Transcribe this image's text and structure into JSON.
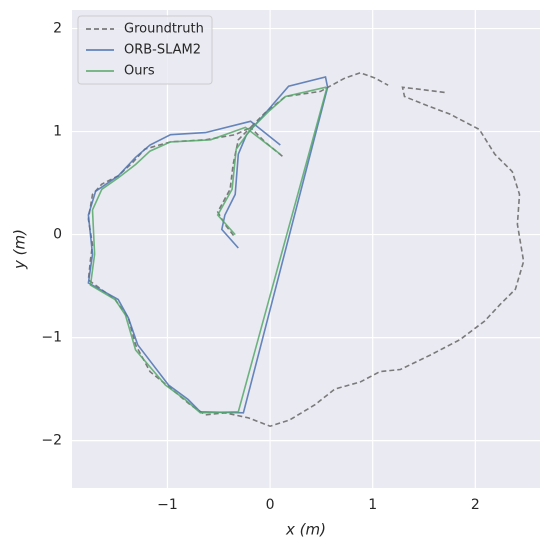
{
  "chart_data": {
    "type": "line",
    "x_label": "x (m)",
    "y_label": "y (m)",
    "xlim": [
      -1.93,
      2.63
    ],
    "ylim": [
      -2.46,
      2.18
    ],
    "xticks": [
      {
        "value": -1,
        "label": "−1"
      },
      0,
      1,
      2
    ],
    "yticks": [
      {
        "value": -2,
        "label": "−2"
      },
      {
        "value": -1,
        "label": "−1"
      },
      0,
      1,
      2
    ],
    "grid": true,
    "legend": "upper left",
    "series": [
      {
        "name": "Groundtruth",
        "color": "#666666",
        "linestyle": "dashed",
        "x": [
          1.7,
          1.46,
          1.29,
          1.31,
          1.51,
          1.75,
          2.04,
          2.19,
          2.36,
          2.43,
          2.41,
          2.47,
          2.39,
          2.24,
          2.09,
          1.85,
          1.56,
          1.27,
          1.07,
          0.88,
          0.63,
          0.44,
          0.19,
          0,
          -0.21,
          -0.44,
          -0.63,
          -0.78,
          -0.97,
          -1.17,
          -1.31,
          -1.38,
          -1.51,
          -1.77,
          -1.75,
          -1.73,
          -1.77,
          -1.73,
          -1.64,
          -1.48,
          -1.34,
          -1.22,
          -0.97,
          -0.63,
          -0.34,
          -0.19,
          -0.05,
          0.15,
          0.49,
          0.73,
          0.88,
          1.02,
          1.15,
          null,
          0.12,
          -0.05,
          -0.19,
          -0.31,
          -0.36,
          -0.39,
          -0.51,
          -0.44,
          -0.34
        ],
        "values": [
          1.38,
          1.41,
          1.43,
          1.34,
          1.26,
          1.17,
          1.02,
          0.78,
          0.61,
          0.39,
          0.1,
          -0.26,
          -0.53,
          -0.68,
          -0.84,
          -1.02,
          -1.17,
          -1.31,
          -1.33,
          -1.43,
          -1.5,
          -1.65,
          -1.8,
          -1.86,
          -1.78,
          -1.73,
          -1.75,
          -1.65,
          -1.49,
          -1.33,
          -1.07,
          -0.81,
          -0.63,
          -0.44,
          -0.24,
          -0.1,
          0.15,
          0.39,
          0.49,
          0.57,
          0.7,
          0.83,
          0.9,
          0.92,
          0.97,
          1.04,
          1.18,
          1.34,
          1.39,
          1.52,
          1.57,
          1.52,
          1.45,
          null,
          0.76,
          0.9,
          1.04,
          0.92,
          0.68,
          0.44,
          0.22,
          0.1,
          -0.03
        ]
      },
      {
        "name": "ORB-SLAM2",
        "color": "#4c72b0",
        "linestyle": "solid",
        "x": [
          -0.31,
          -0.47,
          -0.44,
          -0.34,
          -0.31,
          -0.23,
          -0.08,
          0.18,
          0.54,
          0.56,
          -0.26,
          -0.68,
          -0.8,
          -0.99,
          -1.29,
          -1.38,
          -1.48,
          -1.77,
          -1.73,
          -1.77,
          -1.7,
          -1.48,
          -1.31,
          -1.17,
          -0.97,
          -0.63,
          -0.19,
          0.1
        ],
        "values": [
          -0.13,
          0.05,
          0.19,
          0.39,
          0.78,
          0.97,
          1.14,
          1.44,
          1.53,
          1.43,
          -1.73,
          -1.72,
          -1.6,
          -1.46,
          -1.07,
          -0.81,
          -0.63,
          -0.47,
          -0.19,
          0.19,
          0.42,
          0.57,
          0.75,
          0.87,
          0.97,
          0.99,
          1.1,
          0.87
        ]
      },
      {
        "name": "Ours",
        "color": "#55a868",
        "linestyle": "solid",
        "x": [
          -0.34,
          -0.51,
          -0.37,
          -0.33,
          -0.19,
          -0.02,
          0.15,
          0.54,
          0.55,
          -0.31,
          -0.68,
          -0.83,
          -1.02,
          -1.31,
          -1.41,
          -1.51,
          -1.75,
          -1.71,
          -1.73,
          -1.64,
          -1.48,
          -1.31,
          -1.17,
          -0.97,
          -0.58,
          -0.24,
          0.1
        ],
        "values": [
          0,
          0.19,
          0.44,
          0.83,
          1.02,
          1.19,
          1.34,
          1.43,
          1.41,
          -1.72,
          -1.73,
          -1.6,
          -1.46,
          -1.12,
          -0.78,
          -0.63,
          -0.49,
          -0.19,
          0.24,
          0.44,
          0.55,
          0.68,
          0.81,
          0.9,
          0.92,
          1.04,
          0.78
        ]
      }
    ]
  }
}
